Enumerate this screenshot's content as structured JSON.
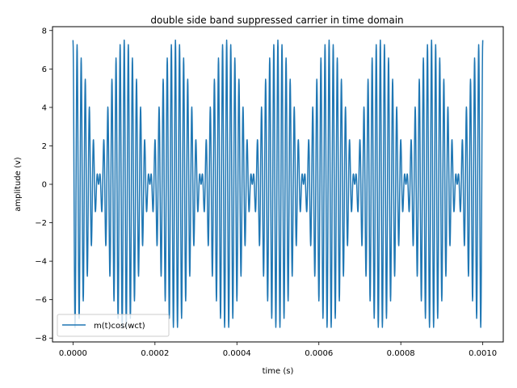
{
  "chart_data": {
    "type": "line",
    "title": "double side band suppressed carrier in time domain",
    "xlabel": "time (s)",
    "ylabel": "amplitude (v)",
    "xlim": [
      -5e-05,
      0.00105
    ],
    "ylim": [
      -8.2,
      8.2
    ],
    "x_ticks": [
      0.0,
      0.0002,
      0.0004,
      0.0006,
      0.0008,
      0.001
    ],
    "x_tick_labels": [
      "0.0000",
      "0.0002",
      "0.0004",
      "0.0006",
      "0.0008",
      "0.0010"
    ],
    "y_ticks": [
      -8,
      -6,
      -4,
      -2,
      0,
      2,
      4,
      6,
      8
    ],
    "y_tick_labels": [
      "−8",
      "−6",
      "−4",
      "−2",
      "0",
      "2",
      "4",
      "6",
      "8"
    ],
    "grid": false,
    "legend_position": "lower-left",
    "series": [
      {
        "name": "m(t)cos(wct)",
        "color": "#1f77b4",
        "signal": {
          "carrier_frequency_hz": 100000,
          "message_frequency_hz": 4000,
          "envelope_peak_v": 7.5,
          "x_start": 0.0,
          "x_end": 0.001,
          "samples": 2001
        }
      }
    ]
  }
}
